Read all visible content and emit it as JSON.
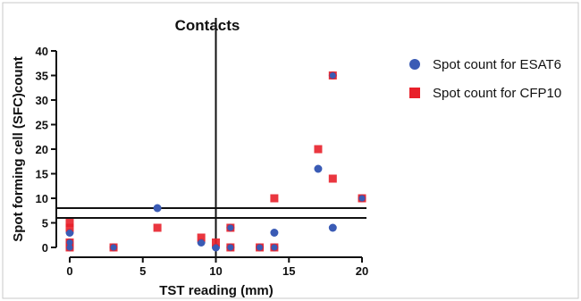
{
  "chart_data": {
    "type": "scatter",
    "title": "Contacts",
    "xlabel": "TST reading (mm)",
    "ylabel": "Spot forming cell (SFC)count",
    "xlim": [
      0,
      20
    ],
    "ylim": [
      0,
      40
    ],
    "x_ticks": [
      0,
      5,
      10,
      15,
      20
    ],
    "y_ticks": [
      0,
      5,
      10,
      15,
      20,
      25,
      30,
      35,
      40
    ],
    "grid": false,
    "legend_position": "right",
    "reference_lines": {
      "vertical_x": [
        10
      ],
      "horizontal_y": [
        6,
        8
      ]
    },
    "series": [
      {
        "name": "Spot count for ESAT6",
        "marker": "circle",
        "color": "#3a5bb5",
        "points": [
          [
            0,
            3
          ],
          [
            0,
            1
          ],
          [
            0,
            0
          ],
          [
            3,
            0
          ],
          [
            6,
            8
          ],
          [
            9,
            1
          ],
          [
            10,
            0
          ],
          [
            11,
            4
          ],
          [
            11,
            0
          ],
          [
            13,
            0
          ],
          [
            14,
            3
          ],
          [
            14,
            0
          ],
          [
            17,
            16
          ],
          [
            18,
            4
          ],
          [
            18,
            35
          ],
          [
            20,
            10
          ]
        ]
      },
      {
        "name": "Spot count for CFP10",
        "marker": "square",
        "color": "#e8202a",
        "points": [
          [
            0,
            5
          ],
          [
            0,
            4
          ],
          [
            0,
            1
          ],
          [
            0,
            0
          ],
          [
            3,
            0
          ],
          [
            6,
            4
          ],
          [
            9,
            2
          ],
          [
            10,
            1
          ],
          [
            11,
            4
          ],
          [
            11,
            0
          ],
          [
            13,
            0
          ],
          [
            14,
            10
          ],
          [
            14,
            0
          ],
          [
            17,
            20
          ],
          [
            18,
            14
          ],
          [
            18,
            35
          ],
          [
            20,
            10
          ]
        ]
      }
    ]
  }
}
